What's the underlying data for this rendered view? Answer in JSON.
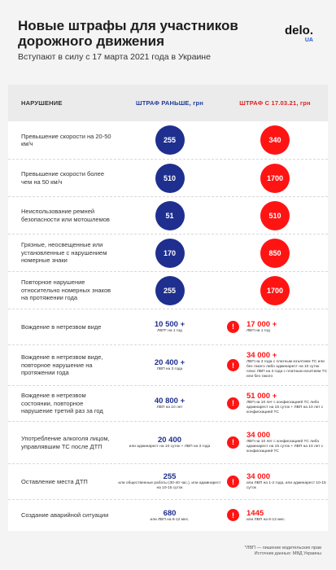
{
  "header": {
    "title": "Новые штрафы для участников дорожного движения",
    "subtitle": "Вступают в силу с 17 марта 2021 года в Украине",
    "logo_main": "delo.",
    "logo_sub": "UA"
  },
  "table": {
    "col_violation": "НАРУШЕНИЕ",
    "col_before": "ШТРАФ РАНЬШЕ, грн",
    "col_after": "ШТРАФ С 17.03.21, грн",
    "colors": {
      "blue": "#1e2f8f",
      "red": "#ff1414"
    },
    "circle_rows": [
      {
        "label": "Превышение скорости на 20-50 км/ч",
        "before": "255",
        "after": "340"
      },
      {
        "label": "Превышение скорости более чем на 50 км/ч",
        "before": "510",
        "after": "1700"
      },
      {
        "label": "Неиспользование ремней безопасности или мотошлемов",
        "before": "51",
        "after": "510"
      },
      {
        "label": "Грязные, неосвещенные или установленные с нарушением номерные знаки",
        "before": "170",
        "after": "850"
      },
      {
        "label": "Повторное нарушение относительно номерных знаков на протяжении года",
        "before": "255",
        "after": "1700"
      }
    ],
    "text_rows": [
      {
        "label": "Вождение в нетрезвом виде",
        "before_amount": "10 500 +",
        "before_note": "ЛВП* на 1 год",
        "after_amount": "17 000 +",
        "after_note": "ЛВП на 1 год"
      },
      {
        "label": "Вождение в нетрезвом виде, повторное нарушение на протяжении года",
        "before_amount": "20 400 +",
        "before_note": "ЛВП на 3 года",
        "after_amount": "34 000 +",
        "after_note": "ЛВП на 3 года с платным изъятием ТС или без такого либо админарест на 10 суток плюс ЛВП на 3 года с платным изъятием ТС или без такого"
      },
      {
        "label": "Вождение в нетрезвом состоянии, повторное нарушение третий раз за год",
        "before_amount": "40 800 +",
        "before_note": "ЛВП на 10 лет",
        "after_amount": "51 000 +",
        "after_note": "ЛВП на 10 лет с конфискацией ТС либо админарест на 15 суток + ЛВП на 10 лет с конфискацией ТС"
      },
      {
        "label": "Употребление алкоголя лицом, управлявшим ТС после ДТП",
        "before_amount": "20 400",
        "before_note": "или админарест на 10 суток + ЛВП на 3 года",
        "after_amount": "34 000",
        "after_note": "ЛВП на 10 лет с конфискацией ТС либо админарест на 15 суток + ЛВП на 10 лет с конфискацией ТС"
      },
      {
        "label": "Оставление места ДТП",
        "before_amount": "255",
        "before_note": "или общественные работы (30-40 час.), или админарест на 10-15 суток",
        "after_amount": "34 000",
        "after_note": "или ЛВП на 1-2 года, или админарест 10-15 суток"
      },
      {
        "label": "Создание аварийной ситуации",
        "before_amount": "680",
        "before_note": "или ЛВП на 6-12 мес.",
        "after_amount": "1445",
        "after_note": "или ЛВП на 6-12 мес."
      }
    ]
  },
  "footer": {
    "line1": "*ЛВП — лишение водительских прав",
    "line2": "Источник данных: МВД Украины"
  }
}
